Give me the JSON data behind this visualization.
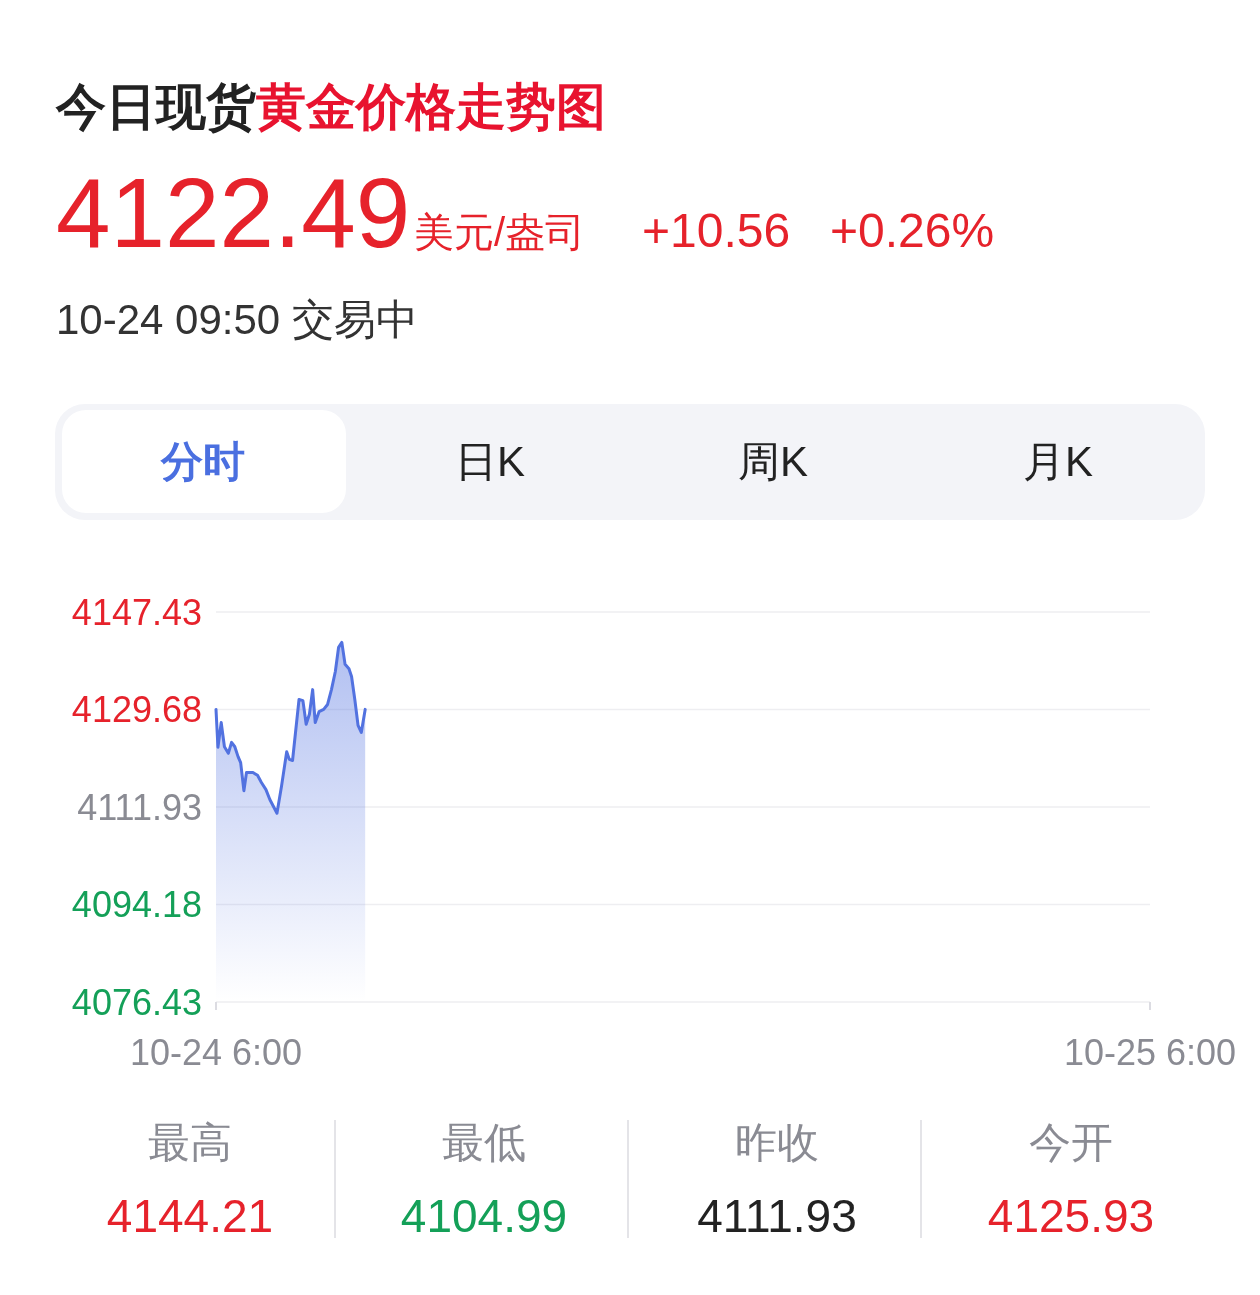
{
  "chart_data": {
    "type": "area",
    "title": "今日现货黄金价格走势图",
    "annotations": [
      "4122.49",
      "美元/盎司",
      "+10.56",
      "+0.26%",
      "10-24 09:50 交易中",
      "分时",
      "日K",
      "周K",
      "月K",
      "最高",
      "4144.21",
      "最低",
      "4104.99",
      "昨收",
      "4111.93",
      "今开",
      "4125.93"
    ],
    "series": [
      {
        "color": "#5272e0",
        "x": [
          "--10-24T06:00",
          "--10-24T06:03",
          "--10-24T06:08",
          "--10-24T06:13",
          "--10-24T06:19",
          "--10-24T06:24",
          "--10-24T06:29",
          "--10-24T06:34",
          "--10-24T06:38",
          "--10-24T06:43",
          "--10-24T06:47",
          "--10-24T06:57",
          "--10-24T07:04",
          "--10-24T07:10",
          "--10-24T07:17",
          "--10-24T07:23",
          "--10-24T07:34",
          "--10-24T07:41",
          "--10-24T07:49",
          "--10-24T07:53",
          "--10-24T07:58",
          "--10-24T08:08",
          "--10-24T08:14",
          "--10-24T08:19",
          "--10-24T08:24",
          "--10-24T08:29",
          "--10-24T08:33",
          "--10-24T08:39",
          "--10-24T08:46",
          "--10-24T08:52",
          "--10-24T08:58",
          "--10-24T09:04",
          "--10-24T09:09",
          "--10-24T09:14",
          "--10-24T09:19",
          "--10-24T09:25",
          "--10-24T09:29",
          "--10-24T09:34",
          "--10-24T09:39",
          "--10-24T09:44",
          "--10-24T09:50"
        ],
        "values": [
          4129.7,
          4122.8,
          4127.3,
          4122.9,
          4121.7,
          4123.7,
          4122.9,
          4121.1,
          4120.0,
          4114.9,
          4118.2,
          4118.2,
          4117.7,
          4116.4,
          4115.1,
          4113.3,
          4110.8,
          4115.7,
          4122.0,
          4120.6,
          4120.4,
          4131.5,
          4131.3,
          4127.0,
          4128.8,
          4133.3,
          4127.3,
          4129.3,
          4129.7,
          4130.6,
          4133.3,
          4136.6,
          4141.0,
          4141.9,
          4137.9,
          4137.1,
          4135.7,
          4131.5,
          4126.8,
          4125.5,
          4129.7
        ]
      }
    ],
    "xlim": [
      "--10-24T06:00",
      "--10-25T06:00"
    ],
    "xticks": [
      {
        "value": "--10-24T06:00",
        "label": "10-24 6:00"
      },
      {
        "value": "--10-25T06:00",
        "label": "10-25 6:00"
      }
    ],
    "ylim": [
      4076.43,
      4147.43
    ],
    "yticks": [
      4076.43,
      4094.18,
      4111.93,
      4129.68,
      4147.43
    ],
    "grid": "y",
    "marker": "none",
    "line_style": "solid"
  }
}
